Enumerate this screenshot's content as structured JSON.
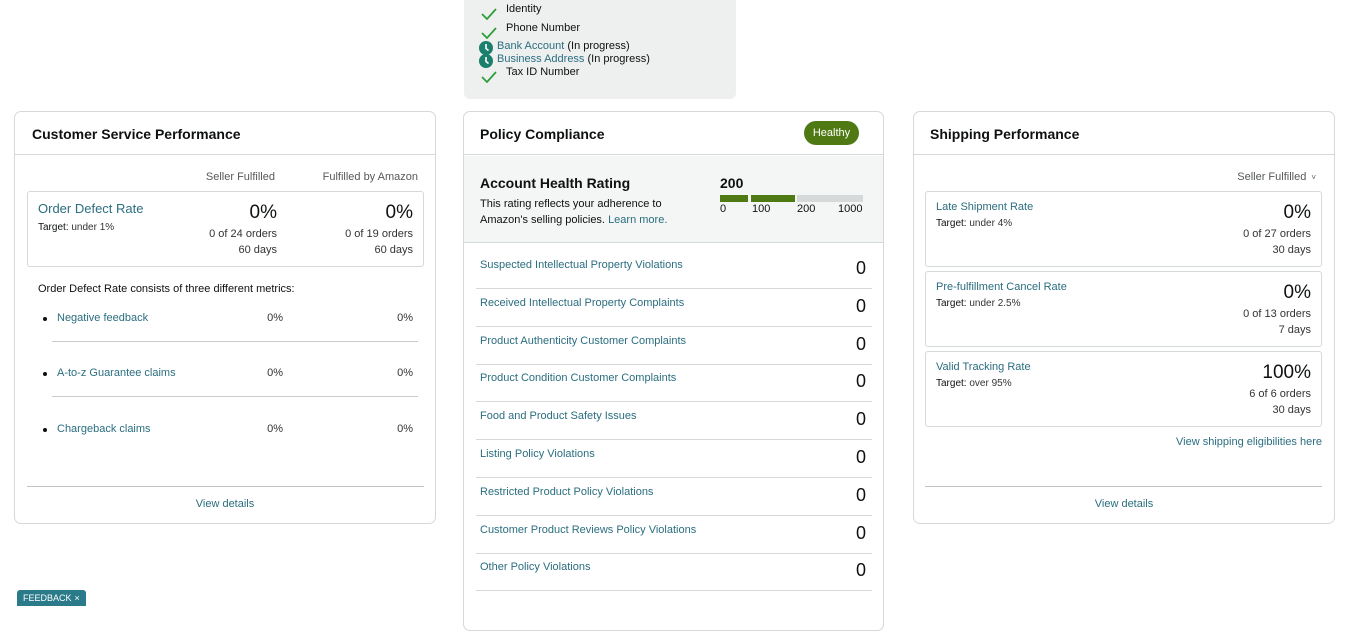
{
  "verification": {
    "items": [
      {
        "label": "Identity"
      },
      {
        "label": "Phone Number"
      },
      {
        "label": "Bank Account",
        "status": "(In progress)"
      },
      {
        "label": "Business Address",
        "status": "(In progress)"
      },
      {
        "label": "Tax ID Number"
      }
    ]
  },
  "customer_service": {
    "title": "Customer Service Performance",
    "columns": [
      "Seller Fulfilled",
      "Fulfilled by Amazon"
    ],
    "order_defect_rate": {
      "name": "Order Defect Rate",
      "target_label": "Target:",
      "target": "under 1%",
      "values": [
        "0%",
        "0%"
      ],
      "orders": [
        "0 of 24 orders",
        "0 of 19 orders"
      ],
      "periods": [
        "60 days",
        "60 days"
      ]
    },
    "metrics_intro": "Order Defect Rate consists of three different metrics:",
    "metrics": [
      {
        "name": "Negative feedback",
        "values": [
          "0%",
          "0%"
        ]
      },
      {
        "name": "A-to-z Guarantee claims",
        "values": [
          "0%",
          "0%"
        ]
      },
      {
        "name": "Chargeback claims",
        "values": [
          "0%",
          "0%"
        ]
      }
    ],
    "view_details": "View details"
  },
  "policy_compliance": {
    "title": "Policy Compliance",
    "badge": "Healthy",
    "account_health": {
      "title": "Account Health Rating",
      "description": "This rating reflects your adherence to Amazon's selling policies.",
      "link": "Learn more.",
      "score": "200",
      "scale": [
        "0",
        "100",
        "200",
        "1000"
      ]
    },
    "rows": [
      {
        "label": "Suspected Intellectual Property Violations",
        "count": 0
      },
      {
        "label": "Received Intellectual Property Complaints",
        "count": 0
      },
      {
        "label": "Product Authenticity Customer Complaints",
        "count": 0
      },
      {
        "label": "Product Condition Customer Complaints",
        "count": 0
      },
      {
        "label": "Food and Product Safety Issues",
        "count": 0
      },
      {
        "label": "Listing Policy Violations",
        "count": 0
      },
      {
        "label": "Restricted Product Policy Violations",
        "count": 0
      },
      {
        "label": "Customer Product Reviews Policy Violations",
        "count": 0
      },
      {
        "label": "Other Policy Violations",
        "count": 0
      }
    ]
  },
  "shipping": {
    "title": "Shipping Performance",
    "dropdown": "Seller Fulfilled",
    "metrics": [
      {
        "name": "Late Shipment Rate",
        "target_label": "Target:",
        "target": "under 4%",
        "value": "0%",
        "orders": "0 of 27 orders",
        "period": "30 days"
      },
      {
        "name": "Pre-fulfillment Cancel Rate",
        "target_label": "Target:",
        "target": "under 2.5%",
        "value": "0%",
        "orders": "0 of 13 orders",
        "period": "7 days"
      },
      {
        "name": "Valid Tracking Rate",
        "target_label": "Target:",
        "target": "over 95%",
        "value": "100%",
        "orders": "6 of 6 orders",
        "period": "30 days"
      }
    ],
    "link": "View shipping eligibilities here",
    "view_details": "View details"
  },
  "feedback": {
    "label": "FEEDBACK"
  }
}
